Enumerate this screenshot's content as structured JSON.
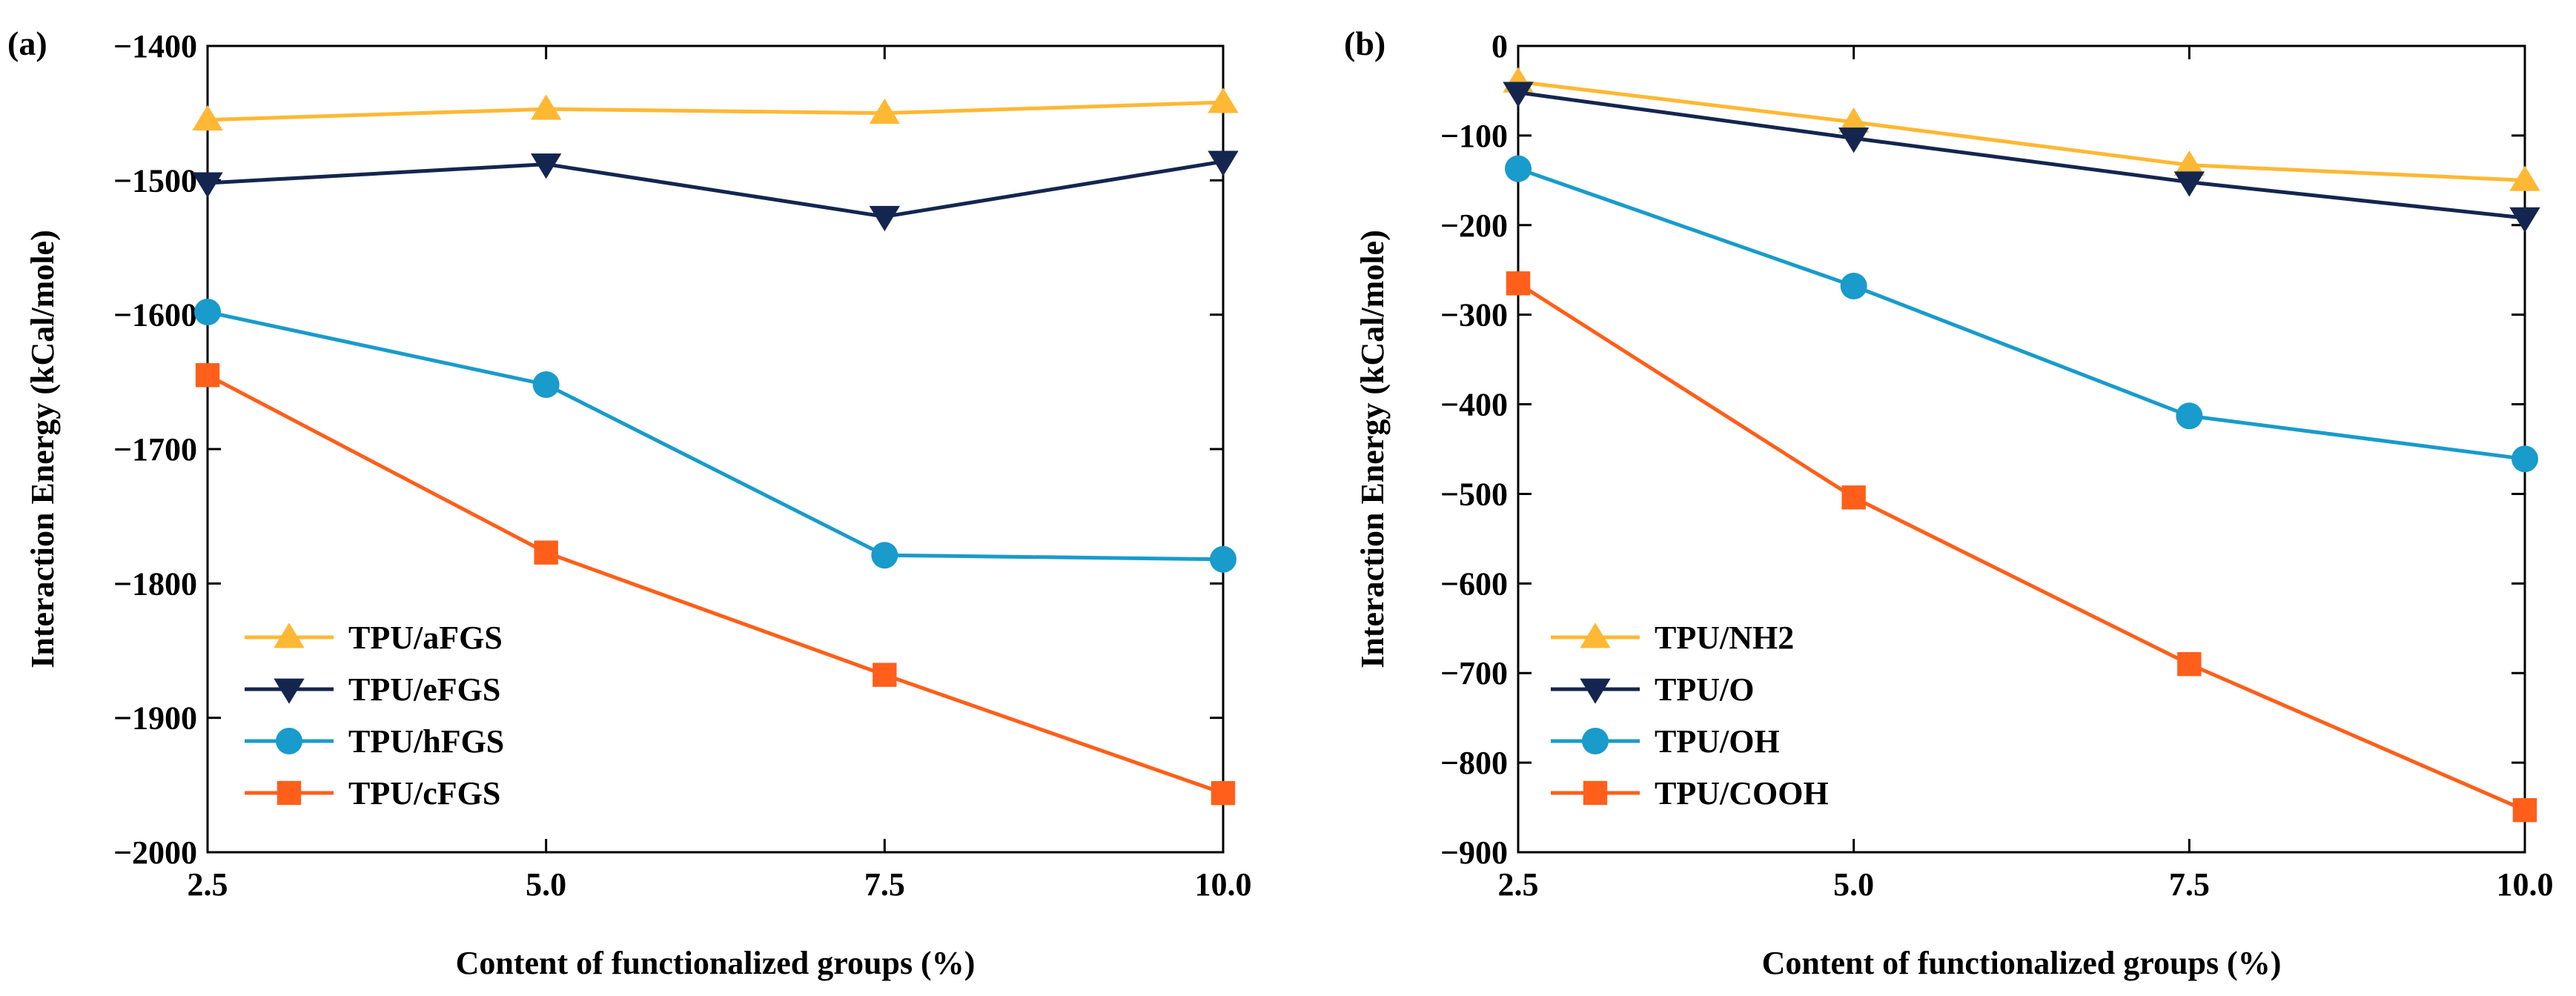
{
  "chart_data": [
    {
      "type": "line",
      "panel_label": "(a)",
      "xlabel": "Content of functionalized groups (%)",
      "ylabel": "Interaction Energy (kCal/mole)",
      "x": [
        2.5,
        5.0,
        7.5,
        10.0
      ],
      "x_tick_labels": [
        "2.5",
        "5.0",
        "7.5",
        "10.0"
      ],
      "xlim": [
        2.5,
        10.0
      ],
      "ylim": [
        -2000,
        -1400
      ],
      "y_ticks": [
        -1400,
        -1500,
        -1600,
        -1700,
        -1800,
        -1900,
        -2000
      ],
      "y_tick_labels": [
        "−1400",
        "−1500",
        "−1600",
        "−1700",
        "−1800",
        "−1900",
        "−2000"
      ],
      "grid": false,
      "legend_position": "bottom-left",
      "series": [
        {
          "name": "TPU/aFGS",
          "marker": "triangle-up",
          "color": "#FFB833",
          "values": [
            -1455,
            -1447,
            -1450,
            -1442
          ]
        },
        {
          "name": "TPU/eFGS",
          "marker": "triangle-down",
          "color": "#14264F",
          "values": [
            -1502,
            -1488,
            -1527,
            -1486
          ]
        },
        {
          "name": "TPU/hFGS",
          "marker": "circle",
          "color": "#199BCB",
          "values": [
            -1598,
            -1652,
            -1779,
            -1782
          ]
        },
        {
          "name": "TPU/cFGS",
          "marker": "square",
          "color": "#FF5F1A",
          "values": [
            -1645,
            -1777,
            -1868,
            -1956
          ]
        }
      ]
    },
    {
      "type": "line",
      "panel_label": "(b)",
      "xlabel": "Content of functionalized groups (%)",
      "ylabel": "Interaction Energy (kCal/mole)",
      "x": [
        2.5,
        5.0,
        7.5,
        10.0
      ],
      "x_tick_labels": [
        "2.5",
        "5.0",
        "7.5",
        "10.0"
      ],
      "xlim": [
        2.5,
        10.0
      ],
      "ylim": [
        -900,
        0
      ],
      "y_ticks": [
        0,
        -100,
        -200,
        -300,
        -400,
        -500,
        -600,
        -700,
        -800,
        -900
      ],
      "y_tick_labels": [
        "0",
        "−100",
        "−200",
        "−300",
        "−400",
        "−500",
        "−600",
        "−700",
        "−800",
        "−900"
      ],
      "grid": false,
      "legend_position": "bottom-left",
      "series": [
        {
          "name": "TPU/NH2",
          "marker": "triangle-up",
          "color": "#FFB833",
          "values": [
            -40,
            -85,
            -133,
            -150
          ]
        },
        {
          "name": "TPU/O",
          "marker": "triangle-down",
          "color": "#14264F",
          "values": [
            -52,
            -103,
            -152,
            -192
          ]
        },
        {
          "name": "TPU/OH",
          "marker": "circle",
          "color": "#199BCB",
          "values": [
            -137,
            -268,
            -413,
            -461
          ]
        },
        {
          "name": "TPU/COOH",
          "marker": "square",
          "color": "#FF5F1A",
          "values": [
            -265,
            -504,
            -690,
            -853
          ]
        }
      ]
    }
  ]
}
